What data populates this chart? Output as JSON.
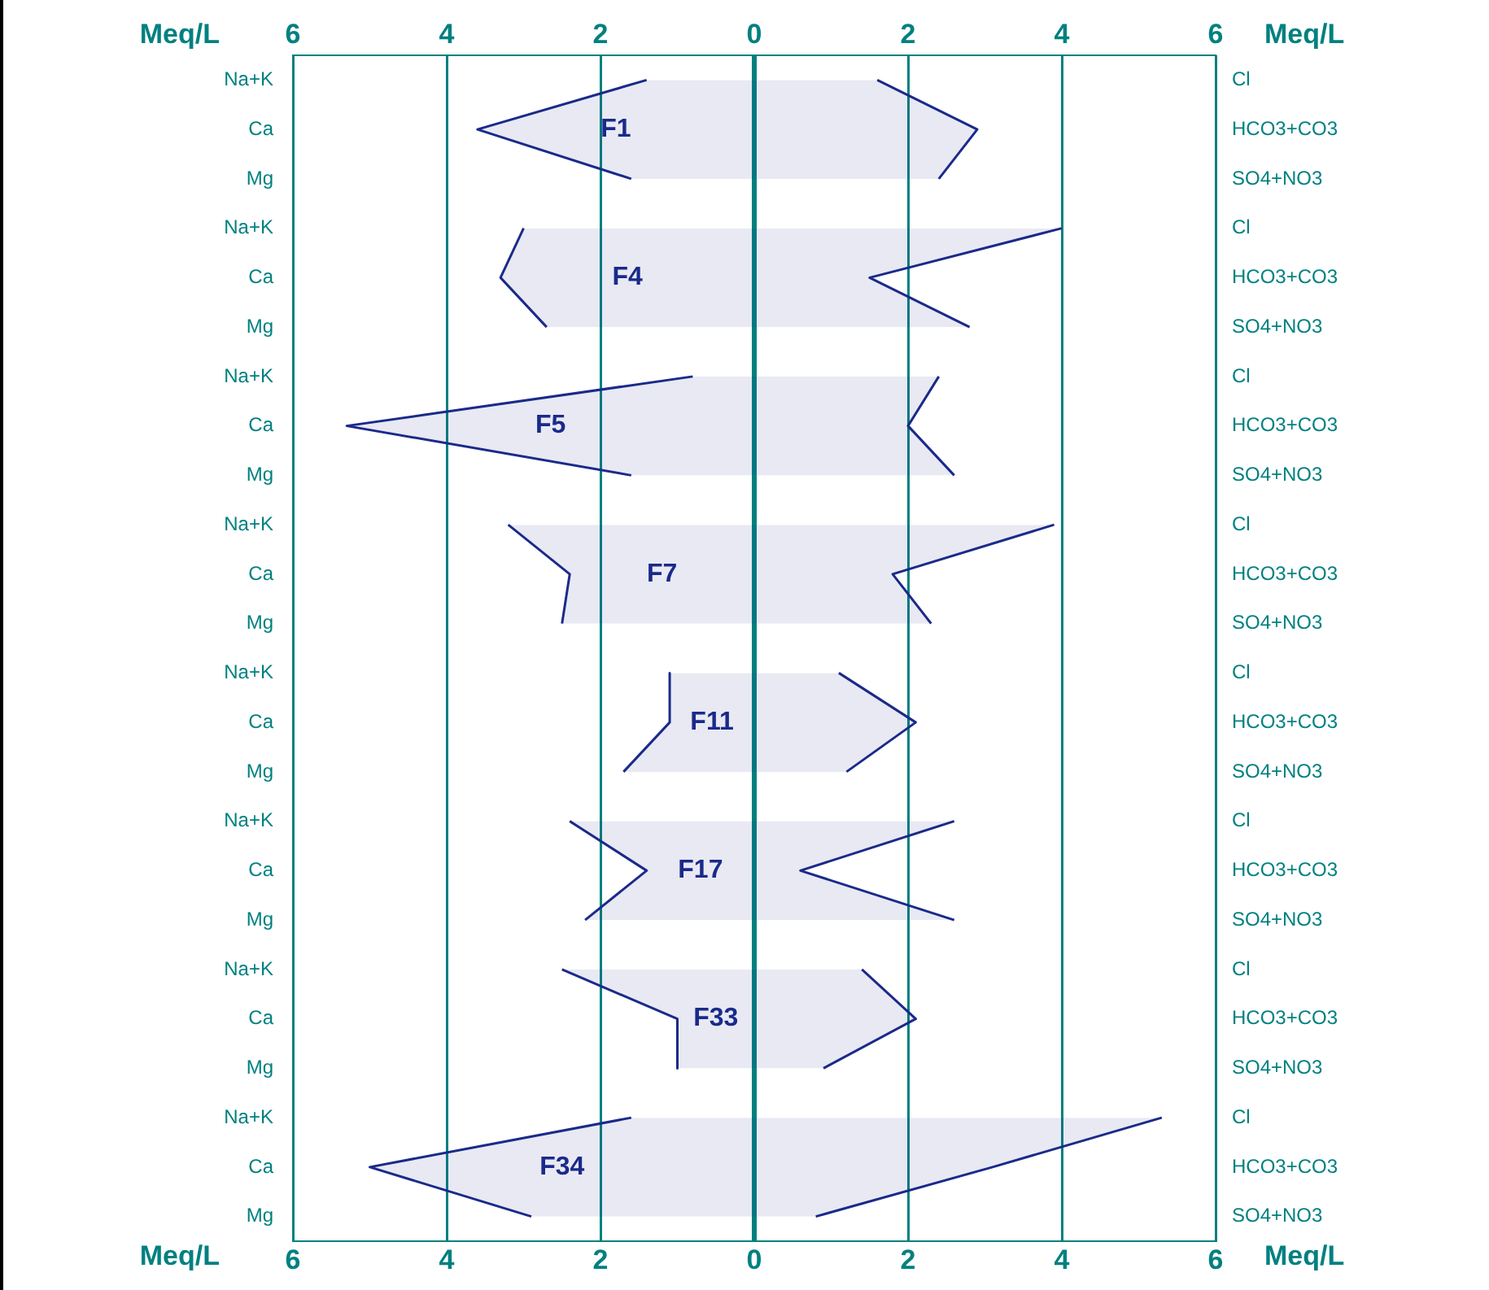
{
  "chart_data": {
    "type": "area",
    "ref_lines": [
      {
        "axis": "x",
        "value": 0,
        "color": "#008080"
      }
    ],
    "orientation": "horizontal",
    "xlabel": "Meq/L",
    "x2label": "Meq/L",
    "legend": false,
    "marker": "none",
    "grid": "x",
    "xlim": [
      -6,
      6
    ],
    "xticks": [
      {
        "value": -6,
        "label": "6"
      },
      {
        "value": -4,
        "label": "4"
      },
      {
        "value": -2,
        "label": "2"
      },
      0,
      2,
      4,
      6
    ],
    "x2lim": [
      -6,
      6
    ],
    "x2ticks": [
      {
        "value": -6,
        "label": "6"
      },
      {
        "value": -4,
        "label": "4"
      },
      {
        "value": -2,
        "label": "2"
      },
      0,
      2,
      4,
      6
    ],
    "categories": [
      "Na+K",
      "Ca",
      "Mg",
      "Na+K",
      "Ca",
      "Mg",
      "Na+K",
      "Ca",
      "Mg",
      "Na+K",
      "Ca",
      "Mg",
      "Na+K",
      "Ca",
      "Mg",
      "Na+K",
      "Ca",
      "Mg",
      "Na+K",
      "Ca",
      "Mg",
      "Na+K",
      "Ca",
      "Mg"
    ],
    "y2_categories": [
      "Cl",
      "HCO3+CO3",
      "SO4+NO3",
      "Cl",
      "HCO3+CO3",
      "SO4+NO3",
      "Cl",
      "HCO3+CO3",
      "SO4+NO3",
      "Cl",
      "HCO3+CO3",
      "SO4+NO3",
      "Cl",
      "HCO3+CO3",
      "SO4+NO3",
      "Cl",
      "HCO3+CO3",
      "SO4+NO3",
      "Cl",
      "HCO3+CO3",
      "SO4+NO3",
      "Cl",
      "HCO3+CO3",
      "SO4+NO3"
    ],
    "series": [
      {
        "name": "F1",
        "color": "#1a2a8a",
        "values": [
          -1.4,
          -3.6,
          -1.6,
          null,
          null,
          null,
          null,
          null,
          null,
          null,
          null,
          null,
          null,
          null,
          null,
          null,
          null,
          null,
          null,
          null,
          null,
          null,
          null,
          null
        ]
      },
      {
        "color": "#1a2a8a",
        "values": [
          1.6,
          2.9,
          2.4,
          null,
          null,
          null,
          null,
          null,
          null,
          null,
          null,
          null,
          null,
          null,
          null,
          null,
          null,
          null,
          null,
          null,
          null,
          null,
          null,
          null
        ]
      },
      {
        "name": "F4",
        "color": "#1a2a8a",
        "values": [
          null,
          null,
          null,
          -3.0,
          -3.3,
          -2.7,
          null,
          null,
          null,
          null,
          null,
          null,
          null,
          null,
          null,
          null,
          null,
          null,
          null,
          null,
          null,
          null,
          null,
          null
        ]
      },
      {
        "color": "#1a2a8a",
        "values": [
          null,
          null,
          null,
          4.0,
          1.5,
          2.8,
          null,
          null,
          null,
          null,
          null,
          null,
          null,
          null,
          null,
          null,
          null,
          null,
          null,
          null,
          null,
          null,
          null,
          null
        ]
      },
      {
        "name": "F5",
        "color": "#1a2a8a",
        "values": [
          null,
          null,
          null,
          null,
          null,
          null,
          -0.8,
          -5.3,
          -1.6,
          null,
          null,
          null,
          null,
          null,
          null,
          null,
          null,
          null,
          null,
          null,
          null,
          null,
          null,
          null
        ]
      },
      {
        "color": "#1a2a8a",
        "values": [
          null,
          null,
          null,
          null,
          null,
          null,
          2.4,
          2.0,
          2.6,
          null,
          null,
          null,
          null,
          null,
          null,
          null,
          null,
          null,
          null,
          null,
          null,
          null,
          null,
          null
        ]
      },
      {
        "name": "F7",
        "color": "#1a2a8a",
        "values": [
          null,
          null,
          null,
          null,
          null,
          null,
          null,
          null,
          null,
          -3.2,
          -2.4,
          -2.5,
          null,
          null,
          null,
          null,
          null,
          null,
          null,
          null,
          null,
          null,
          null,
          null
        ]
      },
      {
        "color": "#1a2a8a",
        "values": [
          null,
          null,
          null,
          null,
          null,
          null,
          null,
          null,
          null,
          3.9,
          1.8,
          2.3,
          null,
          null,
          null,
          null,
          null,
          null,
          null,
          null,
          null,
          null,
          null,
          null
        ]
      },
      {
        "name": "F11",
        "color": "#1a2a8a",
        "values": [
          null,
          null,
          null,
          null,
          null,
          null,
          null,
          null,
          null,
          null,
          null,
          null,
          -1.1,
          -1.1,
          -1.7,
          null,
          null,
          null,
          null,
          null,
          null,
          null,
          null,
          null
        ]
      },
      {
        "color": "#1a2a8a",
        "values": [
          null,
          null,
          null,
          null,
          null,
          null,
          null,
          null,
          null,
          null,
          null,
          null,
          1.1,
          2.1,
          1.2,
          null,
          null,
          null,
          null,
          null,
          null,
          null,
          null,
          null
        ]
      },
      {
        "name": "F17",
        "color": "#1a2a8a",
        "values": [
          null,
          null,
          null,
          null,
          null,
          null,
          null,
          null,
          null,
          null,
          null,
          null,
          null,
          null,
          null,
          -2.4,
          -1.4,
          -2.2,
          null,
          null,
          null,
          null,
          null,
          null
        ]
      },
      {
        "color": "#1a2a8a",
        "values": [
          null,
          null,
          null,
          null,
          null,
          null,
          null,
          null,
          null,
          null,
          null,
          null,
          null,
          null,
          null,
          2.6,
          0.6,
          2.6,
          null,
          null,
          null,
          null,
          null,
          null
        ]
      },
      {
        "name": "F33",
        "color": "#1a2a8a",
        "values": [
          null,
          null,
          null,
          null,
          null,
          null,
          null,
          null,
          null,
          null,
          null,
          null,
          null,
          null,
          null,
          null,
          null,
          null,
          -2.5,
          -1.0,
          -1.0,
          null,
          null,
          null
        ]
      },
      {
        "color": "#1a2a8a",
        "values": [
          null,
          null,
          null,
          null,
          null,
          null,
          null,
          null,
          null,
          null,
          null,
          null,
          null,
          null,
          null,
          null,
          null,
          null,
          1.4,
          2.1,
          0.9,
          null,
          null,
          null
        ]
      },
      {
        "name": "F34",
        "color": "#1a2a8a",
        "values": [
          null,
          null,
          null,
          null,
          null,
          null,
          null,
          null,
          null,
          null,
          null,
          null,
          null,
          null,
          null,
          null,
          null,
          null,
          null,
          null,
          null,
          -1.6,
          -5.0,
          -2.9
        ]
      },
      {
        "color": "#1a2a8a",
        "values": [
          null,
          null,
          null,
          null,
          null,
          null,
          null,
          null,
          null,
          null,
          null,
          null,
          null,
          null,
          null,
          null,
          null,
          null,
          null,
          null,
          null,
          5.3,
          3.1,
          0.8
        ]
      }
    ]
  }
}
